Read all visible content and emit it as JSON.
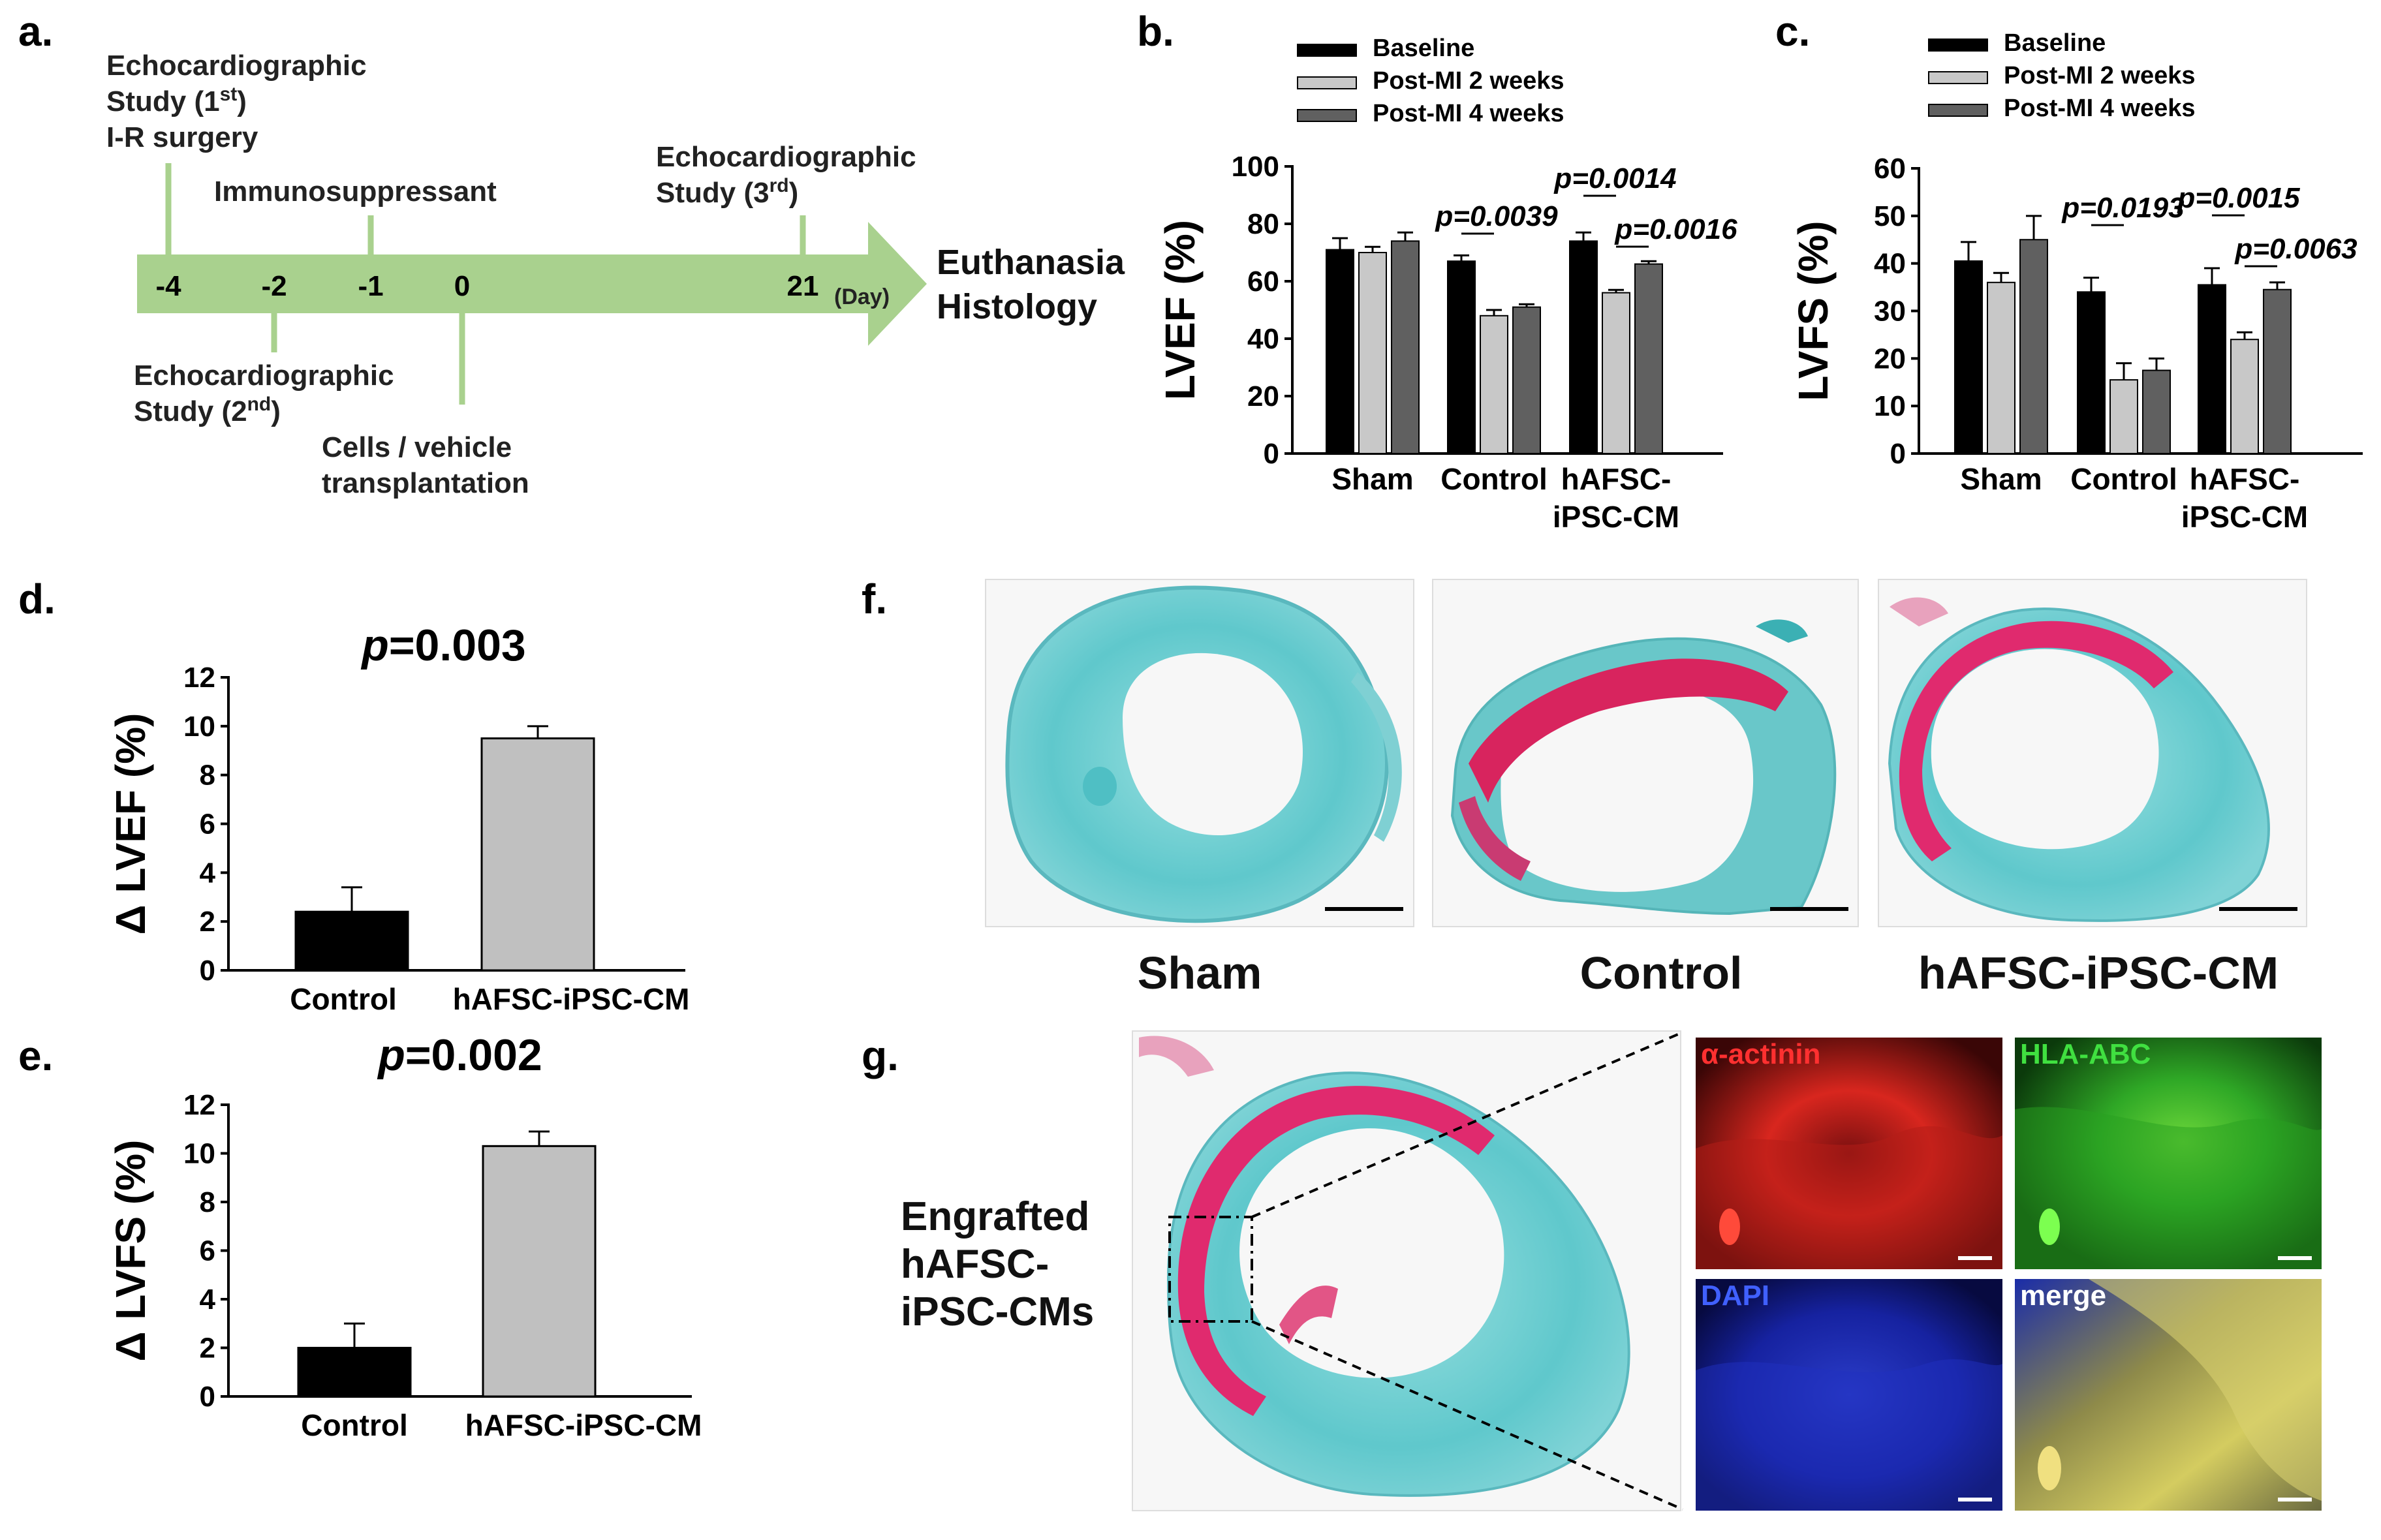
{
  "panels": {
    "a": {
      "letter": "a.",
      "timeline": {
        "ticks": [
          {
            "day": -4,
            "label": "-4"
          },
          {
            "day": -2,
            "label": "-2"
          },
          {
            "day": -1,
            "label": "-1"
          },
          {
            "day": 0,
            "label": "0"
          },
          {
            "day": 21,
            "label": "21"
          }
        ],
        "unit": "(Day)",
        "end_labels": [
          "Euthanasia",
          "Histology"
        ],
        "events_above": [
          {
            "day": -4,
            "lines": [
              "Echocardiographic",
              "Study (1st)",
              "I-R surgery"
            ]
          },
          {
            "day": -1,
            "lines": [
              "Immunosuppressant"
            ]
          },
          {
            "day": 21,
            "lines": [
              "Echocardiographic",
              "Study (3rd)"
            ]
          }
        ],
        "events_below": [
          {
            "day": -2,
            "lines": [
              "Echocardiographic",
              "Study (2nd)"
            ]
          },
          {
            "day": 0,
            "lines": [
              "Cells / vehicle",
              "transplantation"
            ]
          }
        ]
      }
    },
    "b": {
      "letter": "b."
    },
    "c": {
      "letter": "c."
    },
    "d": {
      "letter": "d."
    },
    "e": {
      "letter": "e."
    },
    "f": {
      "letter": "f.",
      "labels": [
        "Sham",
        "Control",
        "hAFSC-iPSC-CM"
      ]
    },
    "g": {
      "letter": "g.",
      "label_lines": [
        "Engrafted",
        "hAFSC-",
        "iPSC-CMs"
      ],
      "channels": [
        "α-actinin",
        "HLA-ABC",
        "DAPI",
        "merge"
      ]
    }
  },
  "colors": {
    "baseline": "#000000",
    "post2": "#c8c8c8",
    "post4": "#606060",
    "timeline": "#a9d18e",
    "trichrome_blue": "#5ec8cc",
    "trichrome_red": "#e02a6e"
  },
  "chart_data": [
    {
      "id": "b",
      "type": "bar",
      "ylabel": "LVEF (%)",
      "ylim": [
        0,
        100
      ],
      "yticks": [
        0,
        20,
        40,
        60,
        80,
        100
      ],
      "categories": [
        "Sham",
        "Control",
        "hAFSC-iPSC-CM"
      ],
      "category_labels": [
        [
          "Sham"
        ],
        [
          "Control"
        ],
        [
          "hAFSC-",
          "iPSC-CM"
        ]
      ],
      "series": [
        {
          "name": "Baseline",
          "values": [
            71,
            67,
            74
          ],
          "errors": [
            4,
            2,
            3
          ]
        },
        {
          "name": "Post-MI 2 weeks",
          "values": [
            70,
            48,
            56
          ],
          "errors": [
            2,
            2,
            1
          ]
        },
        {
          "name": "Post-MI 4 weeks",
          "values": [
            74,
            51,
            66
          ],
          "errors": [
            3,
            1,
            1
          ]
        }
      ],
      "annotations": [
        {
          "text": "p=0.0039",
          "category": 1,
          "from": 0,
          "to": 1
        },
        {
          "text": "p=0.0014",
          "category": 2,
          "from": 0,
          "to": 1
        },
        {
          "text": "p=0.0016",
          "category": 2,
          "from": 1,
          "to": 2
        }
      ],
      "legend_position": "top"
    },
    {
      "id": "c",
      "type": "bar",
      "ylabel": "LVFS (%)",
      "ylim": [
        0,
        60
      ],
      "yticks": [
        0,
        10,
        20,
        30,
        40,
        50,
        60
      ],
      "categories": [
        "Sham",
        "Control",
        "hAFSC-iPSC-CM"
      ],
      "category_labels": [
        [
          "Sham"
        ],
        [
          "Control"
        ],
        [
          "hAFSC-",
          "iPSC-CM"
        ]
      ],
      "series": [
        {
          "name": "Baseline",
          "values": [
            40.5,
            34,
            35.5
          ],
          "errors": [
            4,
            3,
            3.5
          ]
        },
        {
          "name": "Post-MI 2 weeks",
          "values": [
            36,
            15.5,
            24
          ],
          "errors": [
            2,
            3.5,
            1.5
          ]
        },
        {
          "name": "Post-MI 4 weeks",
          "values": [
            45,
            17.5,
            34.5
          ],
          "errors": [
            5,
            2.5,
            1.5
          ]
        }
      ],
      "annotations": [
        {
          "text": "p=0.0193",
          "category": 1,
          "from": 0,
          "to": 1
        },
        {
          "text": "p=0.0015",
          "category": 2,
          "from": 0,
          "to": 1
        },
        {
          "text": "p=0.0063",
          "category": 2,
          "from": 1,
          "to": 2
        }
      ],
      "legend_position": "top"
    },
    {
      "id": "d",
      "type": "bar",
      "title_p": "p",
      "title_rest": "=0.003",
      "ylabel": "Δ LVEF (%)",
      "ylim": [
        0,
        12
      ],
      "yticks": [
        0,
        2,
        4,
        6,
        8,
        10,
        12
      ],
      "categories": [
        "Control",
        "hAFSC-iPSC-CM"
      ],
      "values": [
        2.4,
        9.5
      ],
      "errors": [
        1.0,
        0.5
      ],
      "colors": [
        "#000000",
        "#c0c0c0"
      ]
    },
    {
      "id": "e",
      "type": "bar",
      "title_p": "p",
      "title_rest": "=0.002",
      "ylabel": "Δ LVFS (%)",
      "ylim": [
        0,
        12
      ],
      "yticks": [
        0,
        2,
        4,
        6,
        8,
        10,
        12
      ],
      "categories": [
        "Control",
        "hAFSC-iPSC-CM"
      ],
      "values": [
        2.0,
        10.3
      ],
      "errors": [
        1.0,
        0.6
      ],
      "colors": [
        "#000000",
        "#c0c0c0"
      ]
    }
  ]
}
